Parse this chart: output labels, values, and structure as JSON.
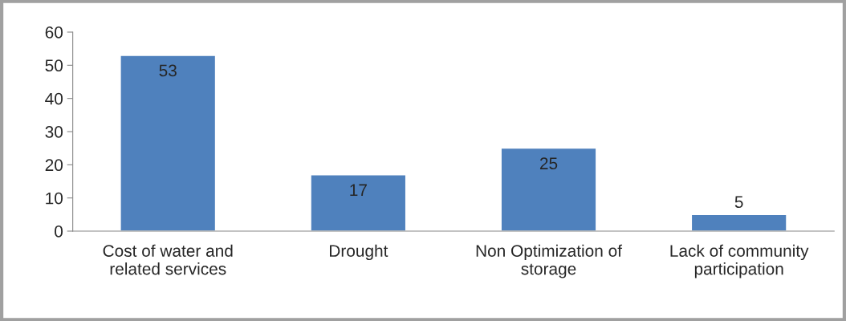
{
  "chart_data": {
    "type": "bar",
    "categories": [
      "Cost of water and\nrelated services",
      "Drought",
      "Non Optimization of\nstorage",
      "Lack of community\nparticipation"
    ],
    "values": [
      53,
      17,
      25,
      5
    ],
    "color": "#4f81bd",
    "ylim": [
      0,
      60
    ],
    "yticks": [
      0,
      10,
      20,
      30,
      40,
      50,
      60
    ],
    "data_labels": true,
    "grid": false
  }
}
